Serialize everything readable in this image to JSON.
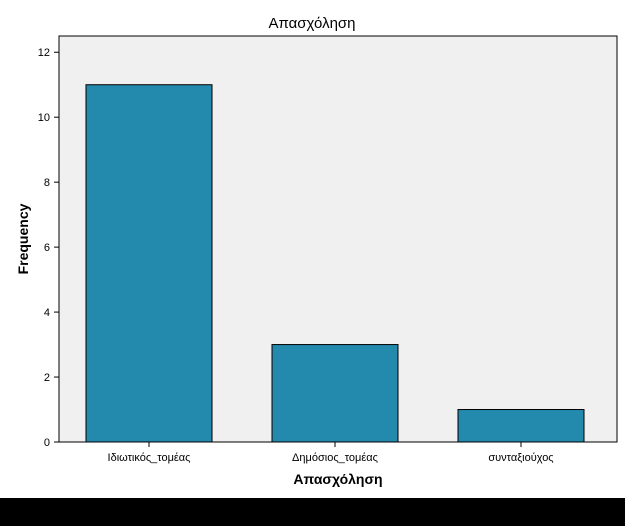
{
  "chart_data": {
    "type": "bar",
    "title": "Απασχόληση",
    "xlabel": "Απασχόληση",
    "ylabel": "Frequency",
    "categories": [
      "Ιδιωτικός_τομέας",
      "Δημόσιος_τομέας",
      "συνταξιούχος"
    ],
    "values": [
      11,
      3,
      1
    ],
    "ylim": [
      0,
      12.5
    ],
    "yticks": [
      "0",
      "2",
      "4",
      "6",
      "8",
      "10",
      "12"
    ],
    "grid": false,
    "legend": "none"
  },
  "colors": {
    "bar_fill": "#2389ad",
    "plot_background": "#f0f0f0",
    "axis": "#000000"
  }
}
